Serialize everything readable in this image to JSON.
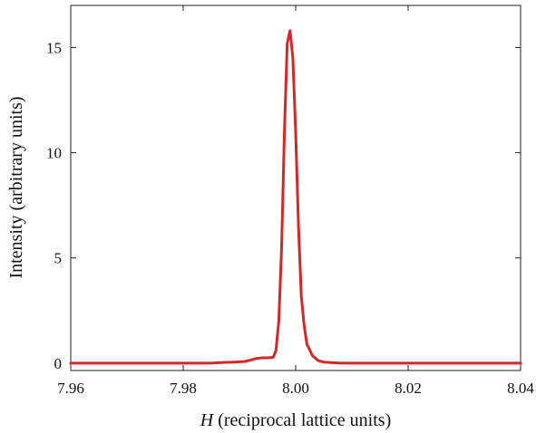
{
  "chart_data": {
    "type": "line",
    "title": "",
    "xlabel_italic": "H",
    "xlabel_rest": " (reciprocal lattice units)",
    "ylabel": "Intensity (arbitrary units)",
    "xlim": [
      7.96,
      8.04
    ],
    "ylim": [
      -0.35,
      17.0
    ],
    "x_ticks": [
      7.96,
      7.98,
      8.0,
      8.02,
      8.04
    ],
    "x_tick_labels": [
      "7.96",
      "7.98",
      "8.00",
      "8.02",
      "8.04"
    ],
    "y_ticks": [
      0,
      5,
      10,
      15
    ],
    "y_tick_labels": [
      "0",
      "5",
      "10",
      "15"
    ],
    "grid": false,
    "legend": "none",
    "series": [
      {
        "color": "#d62728",
        "x": [
          7.96,
          7.97,
          7.98,
          7.985,
          7.987,
          7.989,
          7.991,
          7.992,
          7.993,
          7.994,
          7.995,
          7.996,
          7.9965,
          7.997,
          7.9975,
          7.998,
          7.9985,
          7.999,
          7.9995,
          8.0,
          8.0005,
          8.001,
          8.0015,
          8.002,
          8.003,
          8.004,
          8.005,
          8.006,
          8.008,
          8.01,
          8.02,
          8.04
        ],
        "y": [
          0.0,
          0.0,
          0.0,
          0.0,
          0.03,
          0.05,
          0.08,
          0.15,
          0.22,
          0.25,
          0.25,
          0.28,
          0.6,
          2.0,
          5.5,
          11.0,
          15.2,
          15.8,
          14.5,
          11.0,
          6.5,
          3.2,
          1.8,
          0.9,
          0.35,
          0.12,
          0.05,
          0.03,
          0.0,
          0.0,
          0.0,
          0.0
        ]
      }
    ]
  }
}
